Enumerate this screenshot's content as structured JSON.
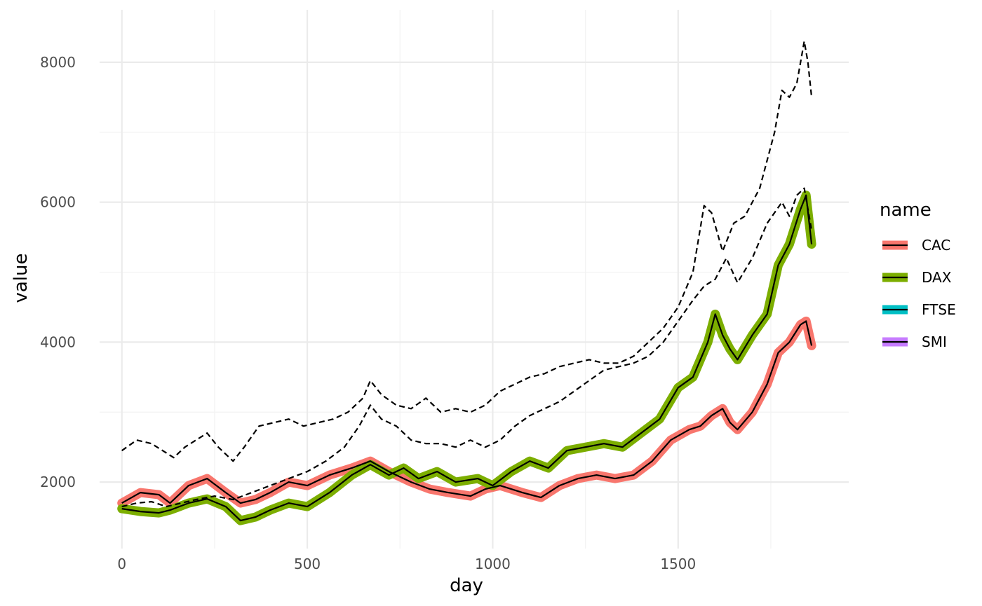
{
  "chart_data": {
    "type": "line",
    "xlabel": "day",
    "ylabel": "value",
    "xlim": [
      -60,
      1960
    ],
    "ylim": [
      1050,
      8750
    ],
    "x_ticks": [
      0,
      500,
      1000,
      1500
    ],
    "x_tick_labels": [
      "0",
      "500",
      "1000",
      "1500"
    ],
    "y_ticks": [
      2000,
      4000,
      6000,
      8000
    ],
    "y_tick_labels": [
      "2000",
      "4000",
      "6000",
      "8000"
    ],
    "grid": true,
    "legend": {
      "title": "name",
      "placement": "right",
      "entries": [
        {
          "label": "CAC",
          "color": "#F8766D"
        },
        {
          "label": "DAX",
          "color": "#7CAE00"
        },
        {
          "label": "FTSE",
          "color": "#00BFC4"
        },
        {
          "label": "SMI",
          "color": "#C77CFF"
        }
      ]
    },
    "highlighted_series": [
      {
        "name": "CAC",
        "color": "#F8766D",
        "x": [
          0,
          50,
          100,
          130,
          180,
          230,
          280,
          320,
          360,
          400,
          450,
          500,
          560,
          620,
          670,
          720,
          780,
          830,
          880,
          940,
          980,
          1020,
          1080,
          1130,
          1180,
          1230,
          1280,
          1330,
          1380,
          1430,
          1480,
          1530,
          1560,
          1590,
          1620,
          1640,
          1660,
          1700,
          1740,
          1770,
          1800,
          1830,
          1845,
          1860
        ],
        "values": [
          1700,
          1850,
          1820,
          1700,
          1950,
          2050,
          1850,
          1700,
          1750,
          1850,
          2000,
          1950,
          2100,
          2200,
          2300,
          2150,
          2000,
          1900,
          1850,
          1800,
          1900,
          1950,
          1850,
          1780,
          1950,
          2050,
          2100,
          2050,
          2100,
          2300,
          2600,
          2750,
          2800,
          2950,
          3050,
          2850,
          2750,
          3000,
          3400,
          3850,
          4000,
          4250,
          4300,
          3950
        ]
      },
      {
        "name": "DAX",
        "color": "#7CAE00",
        "x": [
          0,
          50,
          100,
          130,
          180,
          230,
          280,
          320,
          360,
          400,
          450,
          500,
          560,
          620,
          670,
          720,
          760,
          800,
          850,
          900,
          960,
          1000,
          1050,
          1100,
          1150,
          1200,
          1250,
          1300,
          1350,
          1400,
          1450,
          1500,
          1540,
          1580,
          1600,
          1620,
          1640,
          1660,
          1700,
          1740,
          1770,
          1800,
          1830,
          1845,
          1860
        ],
        "values": [
          1620,
          1580,
          1560,
          1600,
          1700,
          1760,
          1650,
          1450,
          1500,
          1600,
          1700,
          1650,
          1850,
          2100,
          2250,
          2100,
          2200,
          2050,
          2150,
          2000,
          2050,
          1950,
          2150,
          2300,
          2200,
          2450,
          2500,
          2550,
          2500,
          2700,
          2900,
          3350,
          3500,
          4000,
          4400,
          4100,
          3900,
          3750,
          4100,
          4400,
          5100,
          5400,
          5900,
          6100,
          5400
        ]
      }
    ],
    "dashed_series": [
      {
        "x": [
          0,
          40,
          80,
          110,
          140,
          170,
          200,
          230,
          260,
          300,
          330,
          370,
          410,
          450,
          490,
          530,
          570,
          610,
          650,
          670,
          700,
          740,
          780,
          820,
          860,
          900,
          940,
          980,
          1020,
          1060,
          1100,
          1140,
          1180,
          1220,
          1260,
          1300,
          1340,
          1380,
          1420,
          1460,
          1500,
          1540,
          1570,
          1590,
          1620,
          1650,
          1680,
          1720,
          1760,
          1780,
          1800,
          1820,
          1840,
          1850,
          1860
        ],
        "values": [
          2450,
          2600,
          2550,
          2450,
          2350,
          2500,
          2600,
          2700,
          2500,
          2300,
          2500,
          2800,
          2850,
          2900,
          2800,
          2850,
          2900,
          3000,
          3200,
          3450,
          3250,
          3100,
          3050,
          3200,
          3000,
          3050,
          3000,
          3100,
          3300,
          3400,
          3500,
          3550,
          3650,
          3700,
          3750,
          3700,
          3700,
          3800,
          4000,
          4200,
          4500,
          5000,
          5950,
          5850,
          5300,
          5700,
          5800,
          6200,
          7000,
          7600,
          7500,
          7700,
          8300,
          8000,
          7500
        ]
      },
      {
        "x": [
          0,
          40,
          80,
          120,
          160,
          200,
          250,
          300,
          350,
          400,
          450,
          500,
          550,
          600,
          640,
          670,
          700,
          740,
          780,
          820,
          860,
          900,
          940,
          980,
          1020,
          1060,
          1100,
          1140,
          1180,
          1220,
          1260,
          1300,
          1340,
          1380,
          1420,
          1460,
          1500,
          1540,
          1570,
          1600,
          1630,
          1660,
          1700,
          1740,
          1780,
          1800,
          1820,
          1840,
          1860
        ],
        "values": [
          1650,
          1700,
          1720,
          1650,
          1700,
          1750,
          1800,
          1750,
          1850,
          1950,
          2050,
          2150,
          2300,
          2500,
          2800,
          3100,
          2900,
          2800,
          2600,
          2550,
          2550,
          2500,
          2600,
          2500,
          2600,
          2800,
          2950,
          3050,
          3150,
          3300,
          3450,
          3600,
          3650,
          3700,
          3800,
          4000,
          4300,
          4600,
          4800,
          4900,
          5200,
          4850,
          5200,
          5700,
          6000,
          5800,
          6100,
          6200,
          5600
        ]
      }
    ]
  }
}
